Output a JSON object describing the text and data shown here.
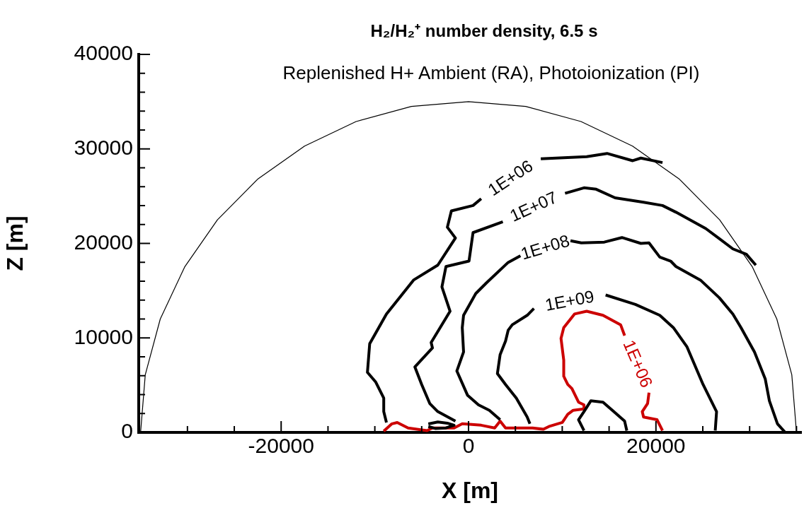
{
  "chart_data": {
    "type": "line",
    "title": "H₂/H₂⁺ number density, 6.5 s",
    "subtitle": "Replenished H+ Ambient (RA), Photoionization (PI)",
    "xlabel": "X [m]",
    "ylabel": "Z [m]",
    "xlim": [
      -35200,
      35500
    ],
    "ylim": [
      0,
      40000
    ],
    "xticks": [
      {
        "value": -30000,
        "label": null
      },
      {
        "value": -25000,
        "label": null
      },
      -20000,
      {
        "value": -15000,
        "label": null
      },
      {
        "value": -10000,
        "label": null
      },
      {
        "value": -5000,
        "label": null
      },
      0,
      {
        "value": 5000,
        "label": null
      },
      {
        "value": 10000,
        "label": null
      },
      {
        "value": 15000,
        "label": null
      },
      20000,
      {
        "value": 25000,
        "label": null
      },
      {
        "value": 30000,
        "label": null
      },
      {
        "value": 35000,
        "label": null
      }
    ],
    "yticks": [
      0,
      {
        "value": 2000,
        "label": null
      },
      {
        "value": 4000,
        "label": null
      },
      {
        "value": 6000,
        "label": null
      },
      {
        "value": 8000,
        "label": null
      },
      10000,
      {
        "value": 12000,
        "label": null
      },
      {
        "value": 14000,
        "label": null
      },
      {
        "value": 16000,
        "label": null
      },
      {
        "value": 18000,
        "label": null
      },
      20000,
      {
        "value": 22000,
        "label": null
      },
      {
        "value": 24000,
        "label": null
      },
      {
        "value": 26000,
        "label": null
      },
      {
        "value": 28000,
        "label": null
      },
      30000,
      {
        "value": 32000,
        "label": null
      },
      {
        "value": 34000,
        "label": null
      },
      {
        "value": 36000,
        "label": null
      },
      {
        "value": 38000,
        "label": null
      },
      40000
    ],
    "grid": false,
    "legend": false,
    "annotations": [
      "1E+06",
      "1E+07",
      "1E+08",
      "1E+09",
      "1E+06"
    ],
    "series": [
      {
        "color": "#000000",
        "x": [
          -35000,
          -34500,
          -32900,
          -30300,
          -26800,
          -22500,
          -17500,
          -12000,
          -6100,
          0,
          6100,
          12000,
          17500,
          22500,
          26800,
          30300,
          32900,
          34500,
          35000
        ],
        "values": [
          0,
          6100,
          12000,
          17500,
          22500,
          26800,
          30300,
          32900,
          34500,
          35000,
          34500,
          32900,
          30300,
          26800,
          22500,
          17500,
          12000,
          6100,
          0
        ]
      },
      {
        "color": "#000000",
        "x": [
          -8760,
          -9050,
          -9050,
          -9920,
          -10790,
          -10550,
          -8760,
          -5870,
          -3280,
          -1400,
          -2260,
          -1830,
          480,
          1350,
          4530,
          7710,
          12610,
          14780,
          17520,
          18390,
          20700
        ],
        "values": [
          1050,
          2200,
          3630,
          5350,
          6360,
          9380,
          12530,
          16120,
          17700,
          20570,
          21710,
          23440,
          24010,
          24730,
          null,
          28950,
          29180,
          29520,
          28750,
          29030,
          28550
        ]
      },
      {
        "color": "#000000",
        "x": [
          -1400,
          -3280,
          -4140,
          -5000,
          -5730,
          -3850,
          -3990,
          -1970,
          -2840,
          -2410,
          50,
          480,
          3660,
          6550,
          10300,
          12320,
          13620,
          15640,
          18680,
          20700,
          22140,
          25320,
          28210,
          29650,
          30660
        ],
        "values": [
          1190,
          2200,
          3060,
          5070,
          6930,
          8940,
          9520,
          12820,
          15400,
          17550,
          18130,
          21140,
          22290,
          null,
          25300,
          25880,
          25730,
          24820,
          24350,
          24010,
          23300,
          21570,
          19420,
          18850,
          17700
        ]
      },
      {
        "color": "#000000",
        "x": [
          3370,
          2220,
          1060,
          -100,
          -1250,
          -530,
          -670,
          -530,
          770,
          1920,
          4230,
          5540,
          8570,
          10880,
          12040,
          14490,
          16370,
          18390,
          19260,
          20410,
          21570,
          22140,
          24750,
          26760,
          28210,
          29080,
          30520,
          31670,
          32110,
          32970,
          33800
        ],
        "values": [
          1340,
          2340,
          2920,
          3920,
          6500,
          8510,
          11090,
          12390,
          14690,
          15830,
          17990,
          18700,
          null,
          20280,
          20050,
          20140,
          20620,
          20000,
          20050,
          18550,
          18130,
          17550,
          16120,
          14250,
          12530,
          11090,
          8510,
          5640,
          3340,
          900,
          0
        ]
      },
      {
        "color": "#000000",
        "x": [
          6550,
          6260,
          5100,
          3950,
          3080,
          3370,
          3950,
          4230,
          4670,
          6260,
          6980,
          10730,
          14630,
          17810,
          20410,
          21860,
          23300,
          25030,
          25460,
          26470,
          26330
        ],
        "values": [
          910,
          1620,
          3630,
          5070,
          6220,
          8230,
          9660,
          10810,
          11390,
          12390,
          13110,
          null,
          14540,
          13540,
          12390,
          11090,
          9080,
          5070,
          4210,
          2200,
          190
        ]
      },
      {
        "color": "#000000",
        "x": [
          12320,
          11740,
          12320,
          13050,
          14350,
          15500,
          16660,
          16890
        ],
        "values": [
          190,
          1340,
          2200,
          3340,
          3200,
          2200,
          1190,
          190
        ]
      },
      {
        "color": "#000000",
        "x": [
          -4290,
          -3280,
          -2260,
          -1540,
          -2410,
          -3560,
          -4290
        ],
        "values": [
          900,
          1100,
          980,
          760,
          470,
          420,
          620
        ]
      },
      {
        "color": "#cc0000",
        "x": [
          20700,
          20120,
          18680,
          18540,
          19110,
          19260,
          17520,
          16660,
          16230,
          14350,
          12610,
          11310,
          10160,
          9870,
          10160,
          10160,
          10590,
          11030,
          11740,
          12320,
          12320,
          11170,
          10590,
          10010,
          8570,
          7990,
          6840,
          5100,
          3950,
          3370,
          2790,
          1350,
          -670,
          -1540,
          -3850,
          -4430,
          -6450,
          -7610,
          -8180,
          -9050
        ],
        "values": [
          190,
          1340,
          1620,
          2200,
          3060,
          4210,
          null,
          10240,
          11390,
          12390,
          12820,
          12530,
          11090,
          9950,
          7650,
          5930,
          5070,
          4640,
          3200,
          2920,
          2480,
          2340,
          1910,
          1050,
          620,
          330,
          470,
          470,
          470,
          1190,
          470,
          760,
          910,
          470,
          470,
          190,
          470,
          1050,
          910,
          130
        ]
      }
    ]
  }
}
